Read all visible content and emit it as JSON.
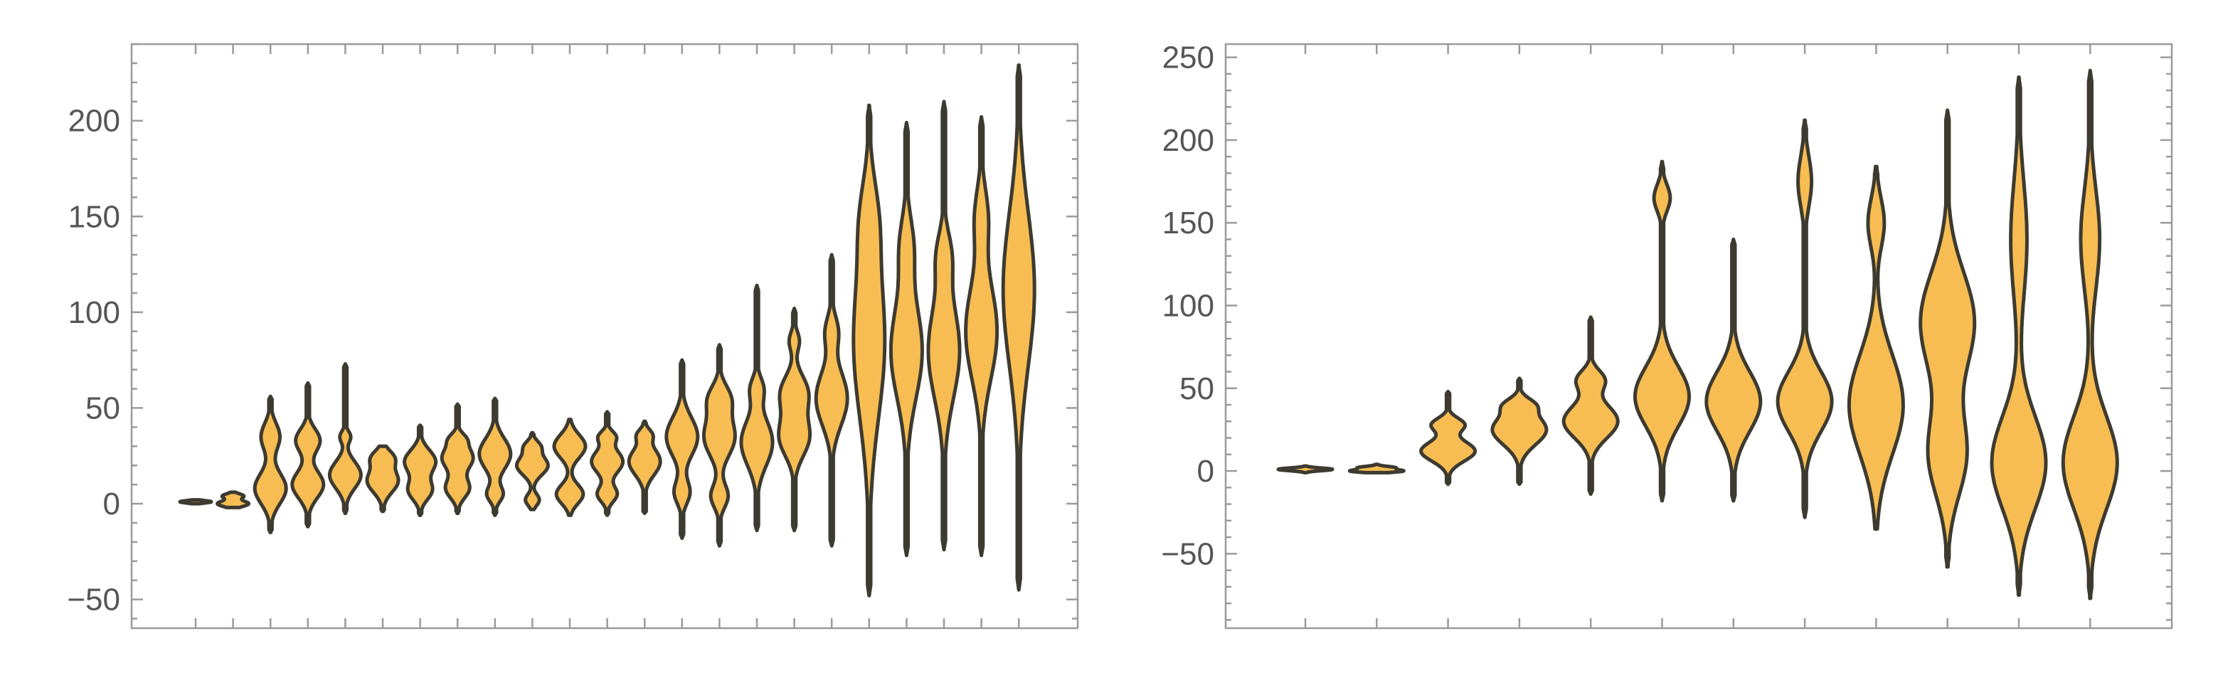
{
  "chart_data": [
    {
      "type": "violin",
      "ylim": [
        -65,
        240
      ],
      "yticks": [
        -50,
        0,
        50,
        100,
        150,
        200
      ],
      "grid": false,
      "fill_color": "#F7BD52",
      "stroke_color": "#3d3a30",
      "violins": [
        {
          "min": 0,
          "max": 2,
          "modes": [
            {
              "y": 1,
              "w": 1,
              "s": 0.6
            }
          ]
        },
        {
          "min": -2,
          "max": 6,
          "modes": [
            {
              "y": 0,
              "w": 0.9,
              "s": 1.5
            },
            {
              "y": 4,
              "w": 0.6,
              "s": 1.2
            }
          ]
        },
        {
          "min": -15,
          "max": 56,
          "modes": [
            {
              "y": 8,
              "w": 1,
              "s": 8
            },
            {
              "y": 35,
              "w": 0.6,
              "s": 7
            }
          ]
        },
        {
          "min": -12,
          "max": 63,
          "modes": [
            {
              "y": 10,
              "w": 0.9,
              "s": 7
            },
            {
              "y": 33,
              "w": 0.7,
              "s": 6
            }
          ]
        },
        {
          "min": -5,
          "max": 73,
          "modes": [
            {
              "y": 15,
              "w": 0.9,
              "s": 7
            },
            {
              "y": 35,
              "w": 0.3,
              "s": 3
            }
          ]
        },
        {
          "min": -4,
          "max": 30,
          "modes": [
            {
              "y": 12,
              "w": 0.9,
              "s": 6
            },
            {
              "y": 24,
              "w": 0.6,
              "s": 4
            }
          ]
        },
        {
          "min": -6,
          "max": 41,
          "modes": [
            {
              "y": 7,
              "w": 0.6,
              "s": 5
            },
            {
              "y": 22,
              "w": 0.8,
              "s": 6
            }
          ]
        },
        {
          "min": -5,
          "max": 52,
          "modes": [
            {
              "y": 8,
              "w": 0.6,
              "s": 5
            },
            {
              "y": 24,
              "w": 0.8,
              "s": 6
            },
            {
              "y": 34,
              "w": 0.3,
              "s": 3
            }
          ]
        },
        {
          "min": -6,
          "max": 55,
          "modes": [
            {
              "y": 5,
              "w": 0.5,
              "s": 4
            },
            {
              "y": 26,
              "w": 1,
              "s": 8
            }
          ]
        },
        {
          "min": -3,
          "max": 37,
          "modes": [
            {
              "y": 2,
              "w": 0.4,
              "s": 3
            },
            {
              "y": 20,
              "w": 0.9,
              "s": 5
            },
            {
              "y": 30,
              "w": 0.4,
              "s": 3
            }
          ]
        },
        {
          "min": -6,
          "max": 44,
          "modes": [
            {
              "y": 5,
              "w": 0.6,
              "s": 5
            },
            {
              "y": 30,
              "w": 0.7,
              "s": 6
            }
          ]
        },
        {
          "min": -6,
          "max": 48,
          "modes": [
            {
              "y": 5,
              "w": 0.5,
              "s": 4
            },
            {
              "y": 22,
              "w": 0.8,
              "s": 6
            },
            {
              "y": 35,
              "w": 0.4,
              "s": 3
            }
          ]
        },
        {
          "min": -5,
          "max": 43,
          "modes": [
            {
              "y": 22,
              "w": 1,
              "s": 7
            },
            {
              "y": 36,
              "w": 0.4,
              "s": 3
            }
          ]
        },
        {
          "min": -18,
          "max": 75,
          "modes": [
            {
              "y": 6,
              "w": 0.5,
              "s": 6
            },
            {
              "y": 35,
              "w": 1,
              "s": 10
            }
          ]
        },
        {
          "min": -22,
          "max": 83,
          "modes": [
            {
              "y": 4,
              "w": 0.5,
              "s": 6
            },
            {
              "y": 35,
              "w": 0.9,
              "s": 10
            },
            {
              "y": 55,
              "w": 0.6,
              "s": 7
            }
          ]
        },
        {
          "min": -14,
          "max": 114,
          "modes": [
            {
              "y": 32,
              "w": 1,
              "s": 12
            },
            {
              "y": 60,
              "w": 0.4,
              "s": 6
            }
          ]
        },
        {
          "min": -14,
          "max": 102,
          "modes": [
            {
              "y": 35,
              "w": 0.9,
              "s": 10
            },
            {
              "y": 58,
              "w": 0.8,
              "s": 9
            },
            {
              "y": 85,
              "w": 0.3,
              "s": 5
            }
          ]
        },
        {
          "min": -22,
          "max": 130,
          "modes": [
            {
              "y": 55,
              "w": 1,
              "s": 14
            },
            {
              "y": 90,
              "w": 0.4,
              "s": 8
            }
          ]
        },
        {
          "min": -48,
          "max": 208,
          "modes": [
            {
              "y": 85,
              "w": 1,
              "s": 40
            },
            {
              "y": 150,
              "w": 0.4,
              "s": 20
            }
          ]
        },
        {
          "min": -27,
          "max": 199,
          "modes": [
            {
              "y": 80,
              "w": 1,
              "s": 25
            },
            {
              "y": 135,
              "w": 0.4,
              "s": 15
            }
          ]
        },
        {
          "min": -24,
          "max": 210,
          "modes": [
            {
              "y": 80,
              "w": 1,
              "s": 25
            },
            {
              "y": 130,
              "w": 0.4,
              "s": 12
            }
          ]
        },
        {
          "min": -27,
          "max": 202,
          "modes": [
            {
              "y": 90,
              "w": 1,
              "s": 25
            },
            {
              "y": 150,
              "w": 0.4,
              "s": 15
            }
          ]
        },
        {
          "min": -45,
          "max": 229,
          "modes": [
            {
              "y": 112,
              "w": 1,
              "s": 40
            }
          ]
        }
      ]
    },
    {
      "type": "violin",
      "ylim": [
        -95,
        258
      ],
      "yticks": [
        -50,
        0,
        50,
        100,
        150,
        200,
        250
      ],
      "grid": false,
      "fill_color": "#F7BD52",
      "stroke_color": "#3d3a30",
      "violins": [
        {
          "min": -1,
          "max": 3,
          "modes": [
            {
              "y": 1,
              "w": 1,
              "s": 0.8
            }
          ]
        },
        {
          "min": -1,
          "max": 4,
          "modes": [
            {
              "y": 0,
              "w": 1,
              "s": 0.8
            },
            {
              "y": 2,
              "w": 0.7,
              "s": 0.8
            }
          ]
        },
        {
          "min": -8,
          "max": 48,
          "modes": [
            {
              "y": 12,
              "w": 1,
              "s": 6
            },
            {
              "y": 28,
              "w": 0.6,
              "s": 4
            }
          ]
        },
        {
          "min": -8,
          "max": 56,
          "modes": [
            {
              "y": 25,
              "w": 1,
              "s": 9
            },
            {
              "y": 40,
              "w": 0.4,
              "s": 4
            }
          ]
        },
        {
          "min": -14,
          "max": 93,
          "modes": [
            {
              "y": 30,
              "w": 1,
              "s": 10
            },
            {
              "y": 55,
              "w": 0.5,
              "s": 6
            }
          ]
        },
        {
          "min": -18,
          "max": 187,
          "modes": [
            {
              "y": 45,
              "w": 1,
              "s": 18
            },
            {
              "y": 165,
              "w": 0.3,
              "s": 8
            }
          ]
        },
        {
          "min": -18,
          "max": 140,
          "modes": [
            {
              "y": 42,
              "w": 1,
              "s": 18
            }
          ]
        },
        {
          "min": -28,
          "max": 212,
          "modes": [
            {
              "y": 42,
              "w": 1,
              "s": 18
            },
            {
              "y": 175,
              "w": 0.25,
              "s": 15
            }
          ]
        },
        {
          "min": -35,
          "max": 184,
          "modes": [
            {
              "y": 40,
              "w": 1,
              "s": 30
            },
            {
              "y": 150,
              "w": 0.3,
              "s": 15
            }
          ]
        },
        {
          "min": -58,
          "max": 218,
          "modes": [
            {
              "y": 10,
              "w": 0.7,
              "s": 25
            },
            {
              "y": 90,
              "w": 1,
              "s": 30
            }
          ]
        },
        {
          "min": -75,
          "max": 238,
          "modes": [
            {
              "y": 5,
              "w": 1,
              "s": 28
            },
            {
              "y": 140,
              "w": 0.3,
              "s": 35
            }
          ]
        },
        {
          "min": -77,
          "max": 242,
          "modes": [
            {
              "y": 5,
              "w": 1,
              "s": 28
            },
            {
              "y": 140,
              "w": 0.35,
              "s": 30
            }
          ]
        }
      ]
    }
  ]
}
